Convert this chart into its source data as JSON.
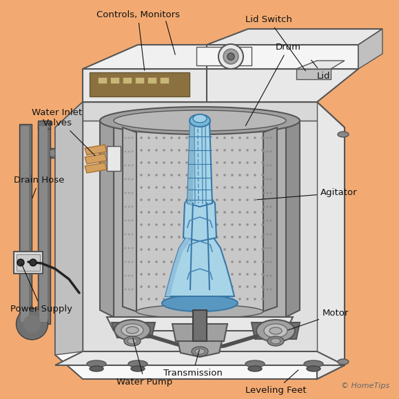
{
  "bg_color": "#f2aa72",
  "labels": {
    "controls_monitors": "Controls, Monitors",
    "lid_switch": "Lid Switch",
    "drum": "Drum",
    "lid": "Lid",
    "agitator": "Agitator",
    "motor": "Motor",
    "transmission": "Transmission",
    "water_pump": "Water Pump",
    "leveling_feet": "Leveling Feet",
    "water_inlet_valves": "Water Inlet\nValves",
    "drain_hose": "Drain Hose",
    "power_supply": "Power Supply"
  },
  "copyright": "© HomeTips",
  "col_white": "#f8f8f8",
  "col_ltgray": "#e8e8e8",
  "col_gray": "#c0c0c0",
  "col_mdgray": "#a0a0a0",
  "col_dkgray": "#707070",
  "col_charcoal": "#505050",
  "col_agit_lt": "#a8d4e8",
  "col_agit_dk": "#5898c0",
  "col_panel": "#8B7040",
  "col_outline": "#555555",
  "col_ann": "#111111",
  "font_size": 9.5,
  "font_size_copy": 8
}
